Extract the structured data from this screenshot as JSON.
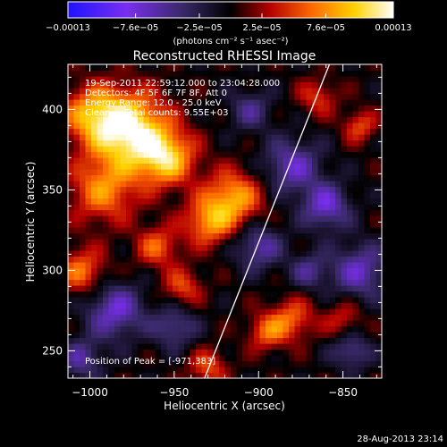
{
  "chart_data": {
    "type": "heatmap",
    "title": "Reconstructed RHESSI Image",
    "xlabel": "Heliocentric X (arcsec)",
    "ylabel": "Heliocentric Y (arcsec)",
    "xlim": [
      -1013,
      -827
    ],
    "ylim": [
      233,
      428
    ],
    "x_ticks": [
      -1000,
      -950,
      -900,
      -850
    ],
    "x_tick_labels": [
      "−1000",
      "−950",
      "−900",
      "−850"
    ],
    "y_ticks": [
      250,
      300,
      350,
      400
    ],
    "y_tick_labels": [
      "250",
      "300",
      "350",
      "400"
    ],
    "colorbar": {
      "min": -0.00013,
      "max": 0.00013,
      "ticks": [
        -0.00013,
        -7.6e-05,
        -2.5e-05,
        2.5e-05,
        7.6e-05,
        0.00013
      ],
      "tick_labels": [
        "−0.00013",
        "−7.6e−05",
        "−2.5e−05",
        "2.5e−05",
        "7.6e−05",
        "0.00013"
      ],
      "unit_label": "(photons cm⁻² s⁻¹ asec⁻²)",
      "colors": [
        "#1e14ff",
        "#7a2ef0",
        "#3a2a6a",
        "#000000",
        "#b40000",
        "#ff6a00",
        "#ffd200",
        "#ffffff"
      ]
    },
    "annotations": [
      "19-Sep-2011 22:59:12.000 to 23:04:28.000",
      "Detectors: 4F 5F 6F 7F 8F, Att 0",
      "Energy Range: 12.0 - 25.0 keV",
      "Clean     Total counts: 9.55E+03"
    ],
    "peak_label": "Position of Peak = [-971,383]",
    "limb_line": {
      "x": [
        -932,
        -858
      ],
      "y": [
        233,
        428
      ]
    },
    "sources": [
      {
        "x": -978,
        "y": 388,
        "amp": 1.0,
        "sigma": 16
      },
      {
        "x": -955,
        "y": 370,
        "amp": 0.75,
        "sigma": 12
      },
      {
        "x": -992,
        "y": 350,
        "amp": 0.55,
        "sigma": 14
      },
      {
        "x": -1000,
        "y": 398,
        "amp": 0.5,
        "sigma": 12
      },
      {
        "x": -915,
        "y": 345,
        "amp": 0.65,
        "sigma": 12
      },
      {
        "x": -930,
        "y": 330,
        "amp": 0.55,
        "sigma": 10
      },
      {
        "x": -960,
        "y": 315,
        "amp": 0.45,
        "sigma": 9
      },
      {
        "x": -945,
        "y": 290,
        "amp": 0.4,
        "sigma": 8
      },
      {
        "x": -1005,
        "y": 300,
        "amp": 0.5,
        "sigma": 10
      },
      {
        "x": -880,
        "y": 270,
        "amp": 0.45,
        "sigma": 9
      },
      {
        "x": -895,
        "y": 262,
        "amp": 0.45,
        "sigma": 8
      },
      {
        "x": -840,
        "y": 390,
        "amp": 0.4,
        "sigma": 7
      },
      {
        "x": -865,
        "y": 408,
        "amp": 0.35,
        "sigma": 8
      },
      {
        "x": -930,
        "y": 240,
        "amp": 0.4,
        "sigma": 8
      },
      {
        "x": -850,
        "y": 270,
        "amp": 0.3,
        "sigma": 8
      },
      {
        "x": -880,
        "y": 365,
        "amp": -0.5,
        "sigma": 12
      },
      {
        "x": -860,
        "y": 340,
        "amp": -0.55,
        "sigma": 10
      },
      {
        "x": -840,
        "y": 300,
        "amp": -0.5,
        "sigma": 12
      },
      {
        "x": -985,
        "y": 275,
        "amp": -0.55,
        "sigma": 12
      },
      {
        "x": -950,
        "y": 265,
        "amp": -0.4,
        "sigma": 9
      },
      {
        "x": -900,
        "y": 315,
        "amp": -0.45,
        "sigma": 10
      },
      {
        "x": -845,
        "y": 250,
        "amp": -0.4,
        "sigma": 8
      },
      {
        "x": -1005,
        "y": 245,
        "amp": -0.4,
        "sigma": 9
      },
      {
        "x": -905,
        "y": 400,
        "amp": -0.35,
        "sigma": 9
      },
      {
        "x": -870,
        "y": 300,
        "amp": -0.35,
        "sigma": 8
      }
    ]
  },
  "footer": {
    "timestamp": "28-Aug-2013 23:14"
  }
}
